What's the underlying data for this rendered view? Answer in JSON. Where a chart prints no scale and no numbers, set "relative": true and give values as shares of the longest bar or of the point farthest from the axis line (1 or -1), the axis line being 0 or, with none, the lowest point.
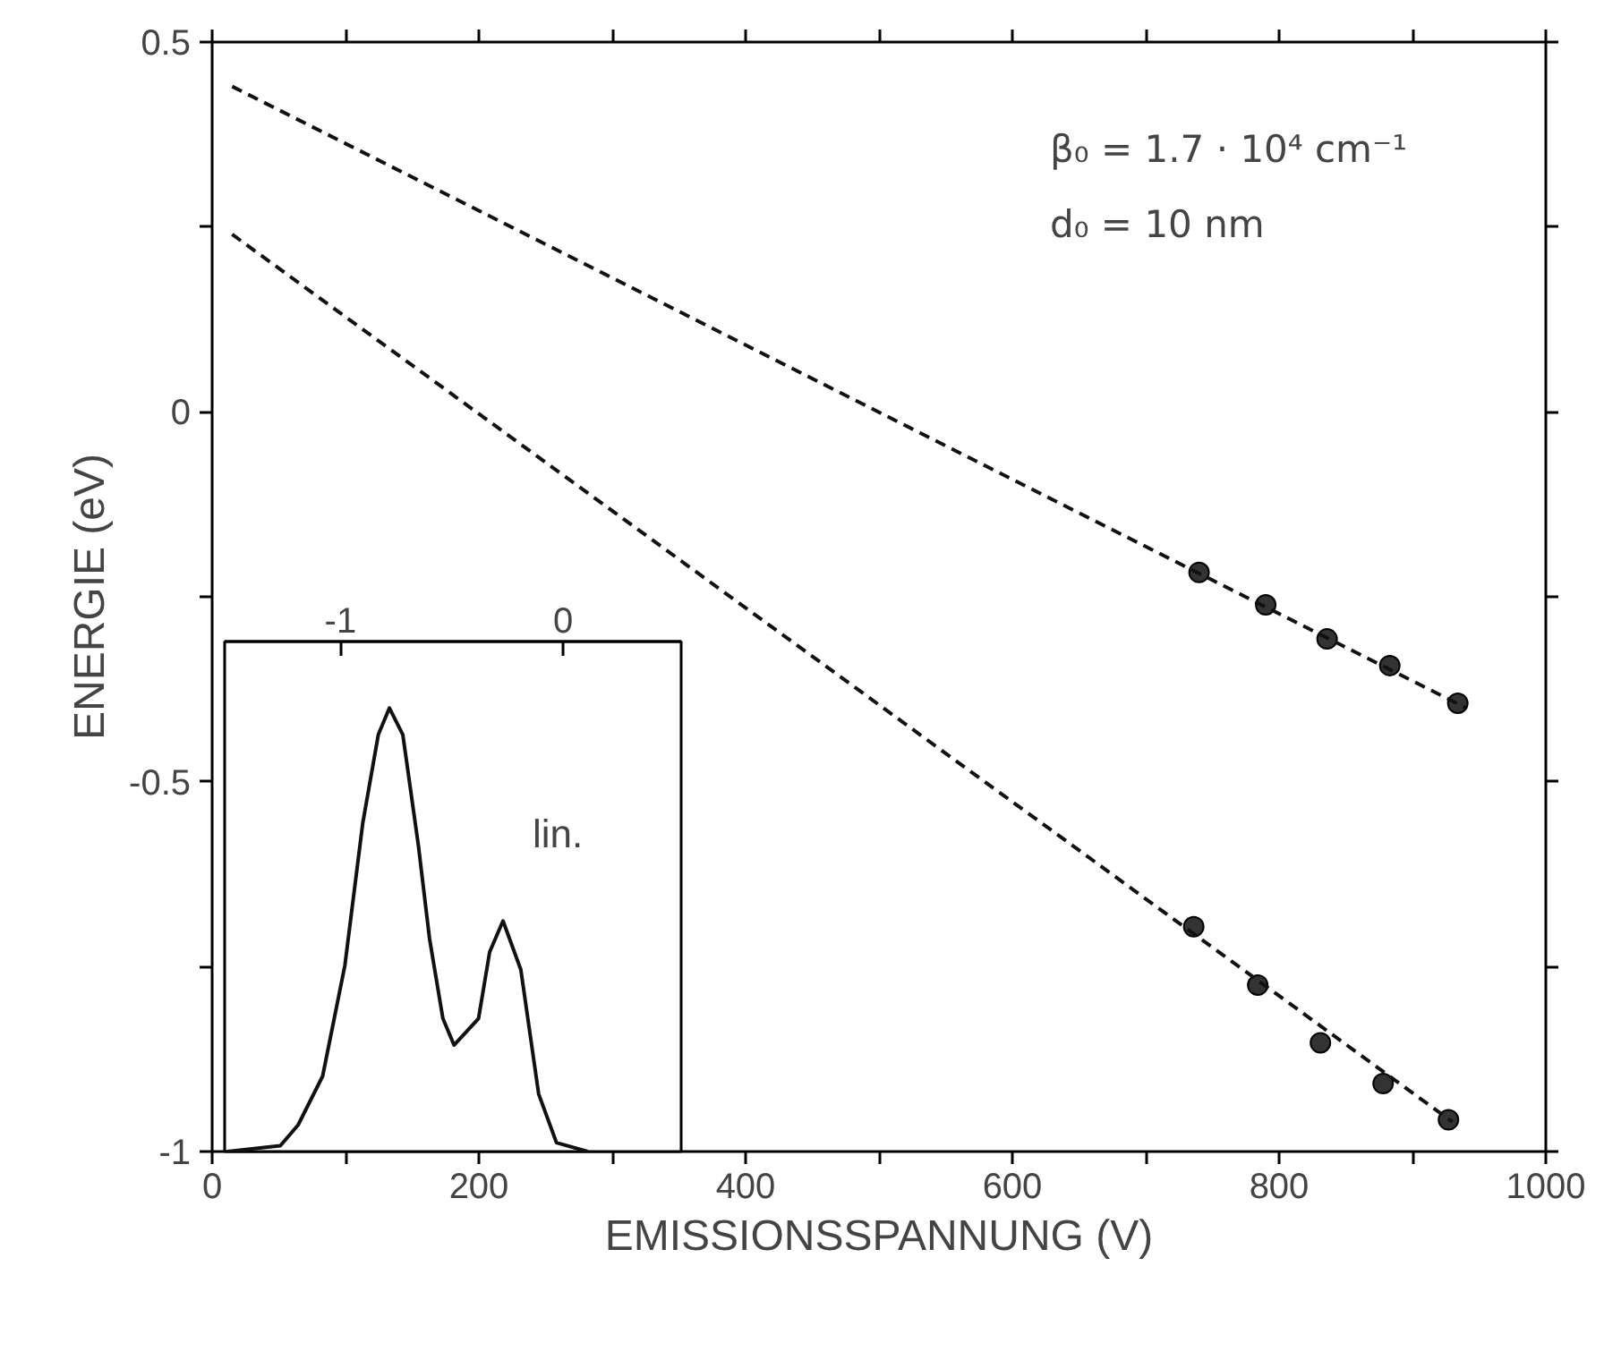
{
  "chart_data": [
    {
      "type": "scatter",
      "xlabel": "EMISSIONSSPANNUNG (V)",
      "ylabel": "ENERGIE (eV)",
      "xlim": [
        0,
        1000
      ],
      "ylim": [
        -1,
        0.5
      ],
      "xticks": [
        0,
        {
          "value": 100,
          "label": null
        },
        200,
        {
          "value": 300,
          "label": null
        },
        400,
        {
          "value": 500,
          "label": null
        },
        600,
        {
          "value": 700,
          "label": null
        },
        800,
        {
          "value": 900,
          "label": null
        },
        1000
      ],
      "yticks": [
        -1,
        {
          "value": -0.75,
          "label": null
        },
        -0.5,
        {
          "value": -0.25,
          "label": null
        },
        0,
        {
          "value": 0.25,
          "label": null
        },
        0.5
      ],
      "grid": false,
      "annotations": [
        "β₀ = 1.7 · 10⁴ cm⁻¹",
        "d₀ = 10 nm"
      ],
      "series": [
        {
          "type": "scatter",
          "marker": "circle",
          "color": "#333333",
          "x": [
            740,
            790,
            836,
            883,
            934
          ],
          "values": [
            -0.217,
            -0.261,
            -0.307,
            -0.343,
            -0.394
          ]
        },
        {
          "type": "scatter",
          "marker": "circle",
          "color": "#333333",
          "x": [
            736,
            784,
            831,
            878,
            927
          ],
          "values": [
            -0.696,
            -0.775,
            -0.853,
            -0.908,
            -0.957
          ]
        },
        {
          "type": "line",
          "marker": "none",
          "line_style": "dashed",
          "color": "#111111",
          "x": [
            15,
            940
          ],
          "values": [
            0.44,
            -0.4
          ]
        },
        {
          "type": "line",
          "marker": "none",
          "line_style": "dashed",
          "color": "#111111",
          "x": [
            15,
            930
          ],
          "values": [
            0.24,
            -0.96
          ]
        }
      ]
    },
    {
      "type": "line",
      "relative": true,
      "tick_labels": "x",
      "xlim": [
        -1.52,
        0.53
      ],
      "xticks": [
        -1,
        0
      ],
      "annotations": [
        "lin."
      ],
      "marker": "none",
      "line_style": "solid",
      "series": [
        {
          "color": "#111111",
          "x": [
            -1.51,
            -1.27,
            -1.19,
            -1.08,
            -0.98,
            -0.9,
            -0.83,
            -0.78,
            -0.72,
            -0.65,
            -0.6,
            -0.54,
            -0.49,
            -0.38,
            -0.33,
            -0.27,
            -0.19,
            -0.11,
            -0.03,
            0.11
          ],
          "values": [
            0,
            0.013,
            0.06,
            0.17,
            0.42,
            0.74,
            0.94,
            1.0,
            0.94,
            0.69,
            0.48,
            0.3,
            0.24,
            0.3,
            0.45,
            0.52,
            0.41,
            0.13,
            0.02,
            0
          ]
        }
      ]
    }
  ]
}
